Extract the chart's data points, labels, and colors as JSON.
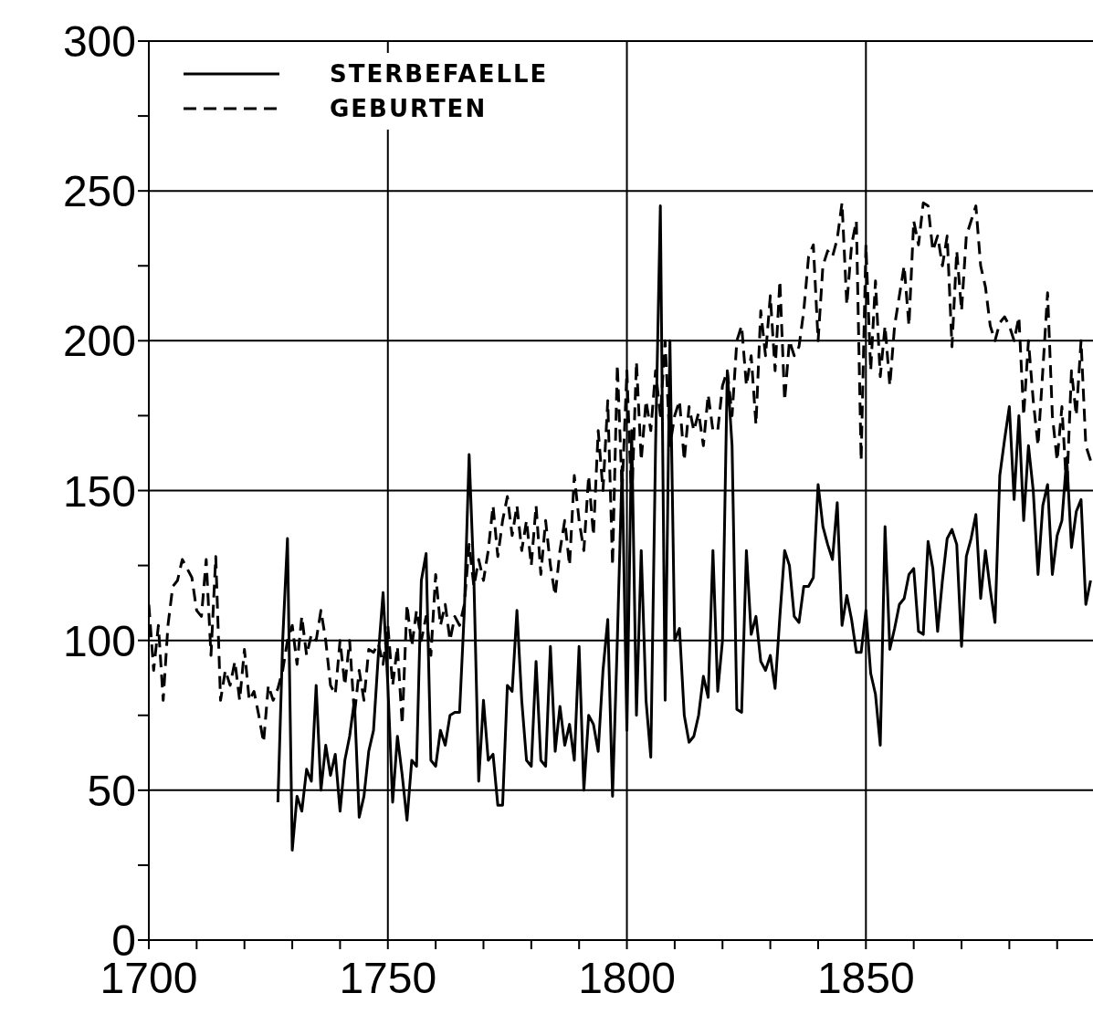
{
  "chart_data": {
    "type": "line",
    "x": [
      1700,
      1701,
      1702,
      1703,
      1704,
      1705,
      1706,
      1707,
      1708,
      1709,
      1710,
      1711,
      1712,
      1713,
      1714,
      1715,
      1716,
      1717,
      1718,
      1719,
      1720,
      1721,
      1722,
      1723,
      1724,
      1725,
      1726,
      1727,
      1728,
      1729,
      1730,
      1731,
      1732,
      1733,
      1734,
      1735,
      1736,
      1737,
      1738,
      1739,
      1740,
      1741,
      1742,
      1743,
      1744,
      1745,
      1746,
      1747,
      1748,
      1749,
      1750,
      1751,
      1752,
      1753,
      1754,
      1755,
      1756,
      1757,
      1758,
      1759,
      1760,
      1761,
      1762,
      1763,
      1764,
      1765,
      1766,
      1767,
      1768,
      1769,
      1770,
      1771,
      1772,
      1773,
      1774,
      1775,
      1776,
      1777,
      1778,
      1779,
      1780,
      1781,
      1782,
      1783,
      1784,
      1785,
      1786,
      1787,
      1788,
      1789,
      1790,
      1791,
      1792,
      1793,
      1794,
      1795,
      1796,
      1797,
      1798,
      1799,
      1800,
      1801,
      1802,
      1803,
      1804,
      1805,
      1806,
      1807,
      1808,
      1809,
      1810,
      1811,
      1812,
      1813,
      1814,
      1815,
      1816,
      1817,
      1818,
      1819,
      1820,
      1821,
      1822,
      1823,
      1824,
      1825,
      1826,
      1827,
      1828,
      1829,
      1830,
      1831,
      1832,
      1833,
      1834,
      1835,
      1836,
      1837,
      1838,
      1839,
      1840,
      1841,
      1842,
      1843,
      1844,
      1845,
      1846,
      1847,
      1848,
      1849,
      1850,
      1851,
      1852,
      1853,
      1854,
      1855,
      1856,
      1857,
      1858,
      1859,
      1860,
      1861,
      1862,
      1863,
      1864,
      1865,
      1866,
      1867,
      1868,
      1869,
      1870,
      1871,
      1872,
      1873,
      1874,
      1875,
      1876,
      1877,
      1878,
      1879,
      1880,
      1881,
      1882,
      1883,
      1884,
      1885,
      1886,
      1887,
      1888,
      1889,
      1890,
      1891,
      1892,
      1893,
      1894,
      1895,
      1896,
      1897
    ],
    "series": [
      {
        "name": "STERBEFAELLE",
        "color": "#000000",
        "line_style": "solid",
        "values": [
          null,
          null,
          null,
          null,
          null,
          null,
          null,
          null,
          null,
          null,
          null,
          null,
          null,
          null,
          null,
          null,
          null,
          null,
          null,
          null,
          null,
          null,
          null,
          null,
          null,
          null,
          null,
          46,
          100,
          134,
          30,
          48,
          43,
          57,
          53,
          85,
          50,
          65,
          55,
          62,
          43,
          60,
          68,
          80,
          41,
          48,
          63,
          70,
          95,
          116,
          85,
          46,
          68,
          55,
          40,
          60,
          58,
          120,
          129,
          60,
          58,
          70,
          65,
          75,
          76,
          76,
          110,
          162,
          120,
          53,
          80,
          60,
          62,
          45,
          45,
          85,
          83,
          110,
          80,
          60,
          58,
          93,
          60,
          58,
          98,
          63,
          78,
          65,
          72,
          60,
          98,
          50,
          75,
          72,
          63,
          90,
          107,
          48,
          100,
          158,
          70,
          170,
          75,
          130,
          80,
          61,
          165,
          245,
          80,
          200,
          100,
          104,
          75,
          66,
          68,
          75,
          88,
          81,
          130,
          83,
          100,
          190,
          165,
          77,
          76,
          130,
          102,
          108,
          93,
          90,
          95,
          84,
          108,
          130,
          125,
          108,
          106,
          118,
          118,
          121,
          152,
          138,
          132,
          127,
          146,
          105,
          115,
          107,
          96,
          96,
          110,
          89,
          82,
          65,
          138,
          97,
          104,
          112,
          114,
          122,
          124,
          103,
          102,
          133,
          124,
          103,
          120,
          134,
          137,
          132,
          98,
          128,
          134,
          142,
          114,
          130,
          117,
          106,
          155,
          167,
          178,
          147,
          175,
          140,
          165,
          150,
          122,
          145,
          152,
          122,
          135,
          140,
          161,
          131,
          143,
          147,
          112,
          120
        ]
      },
      {
        "name": "GEBURTEN",
        "color": "#000000",
        "line_style": "dashed",
        "values": [
          112,
          90,
          105,
          80,
          105,
          118,
          120,
          127,
          124,
          121,
          110,
          108,
          127,
          95,
          128,
          80,
          90,
          85,
          93,
          80,
          97,
          80,
          83,
          75,
          66,
          85,
          80,
          84,
          90,
          100,
          105,
          92,
          108,
          95,
          102,
          100,
          110,
          100,
          85,
          82,
          100,
          85,
          100,
          75,
          90,
          80,
          97,
          96,
          99,
          92,
          105,
          85,
          98,
          72,
          112,
          98,
          110,
          100,
          108,
          95,
          122,
          105,
          112,
          100,
          108,
          105,
          112,
          132,
          118,
          127,
          120,
          130,
          145,
          128,
          140,
          148,
          135,
          145,
          130,
          140,
          125,
          145,
          122,
          140,
          125,
          115,
          130,
          140,
          125,
          155,
          140,
          130,
          155,
          135,
          170,
          150,
          180,
          125,
          192,
          150,
          190,
          145,
          193,
          160,
          180,
          170,
          190,
          175,
          200,
          165,
          175,
          180,
          160,
          178,
          170,
          176,
          165,
          182,
          170,
          170,
          185,
          190,
          175,
          200,
          205,
          185,
          195,
          172,
          210,
          195,
          215,
          190,
          220,
          180,
          200,
          195,
          198,
          210,
          228,
          232,
          200,
          225,
          230,
          228,
          234,
          246,
          212,
          232,
          240,
          160,
          232,
          190,
          220,
          188,
          205,
          185,
          205,
          215,
          225,
          205,
          240,
          232,
          246,
          245,
          230,
          235,
          225,
          235,
          198,
          230,
          210,
          235,
          240,
          245,
          225,
          218,
          205,
          200,
          206,
          208,
          205,
          200,
          208,
          175,
          200,
          180,
          165,
          190,
          216,
          175,
          160,
          178,
          150,
          190,
          175,
          200,
          165,
          160
        ]
      }
    ],
    "xlim": [
      1700,
      1897.5
    ],
    "xticks": [
      1700,
      {
        "value": 1710,
        "label": null
      },
      {
        "value": 1720,
        "label": null
      },
      {
        "value": 1730,
        "label": null
      },
      {
        "value": 1740,
        "label": null
      },
      1750,
      {
        "value": 1760,
        "label": null
      },
      {
        "value": 1770,
        "label": null
      },
      {
        "value": 1780,
        "label": null
      },
      {
        "value": 1790,
        "label": null
      },
      1800,
      {
        "value": 1810,
        "label": null
      },
      {
        "value": 1820,
        "label": null
      },
      {
        "value": 1830,
        "label": null
      },
      {
        "value": 1840,
        "label": null
      },
      1850,
      {
        "value": 1860,
        "label": null
      },
      {
        "value": 1870,
        "label": null
      },
      {
        "value": 1880,
        "label": null
      },
      {
        "value": 1890,
        "label": null
      }
    ],
    "ylim": [
      0,
      300
    ],
    "yticks": [
      0,
      {
        "value": 25,
        "label": null
      },
      50,
      {
        "value": 75,
        "label": null
      },
      100,
      {
        "value": 125,
        "label": null
      },
      150,
      {
        "value": 175,
        "label": null
      },
      200,
      {
        "value": 225,
        "label": null
      },
      250,
      {
        "value": 275,
        "label": null
      },
      300
    ],
    "grid": true,
    "legend": "top left",
    "marker": "none"
  }
}
